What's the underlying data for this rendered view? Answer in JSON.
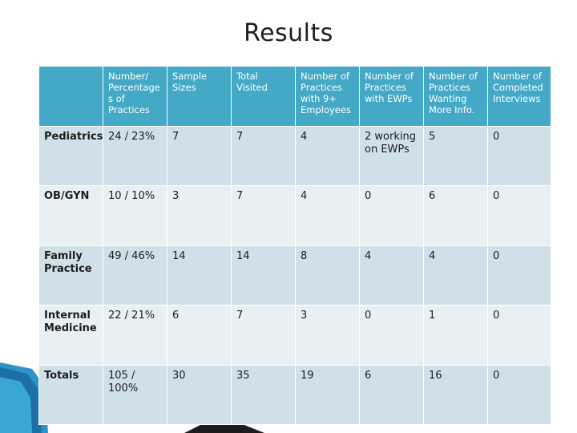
{
  "title": "Results",
  "table": {
    "headers": [
      "",
      "Number/ Percentage s of Practices",
      "Sample Sizes",
      "Total Visited",
      "Number of Practices with 9+ Employees",
      "Number of Practices with EWPs",
      "Number of Practices Wanting More Info.",
      "Number of Completed Interviews"
    ],
    "rows": [
      [
        "Pediatrics",
        "24 / 23%",
        "7",
        "7",
        "4",
        "2 working on EWPs",
        "5",
        "0"
      ],
      [
        "OB/GYN",
        "10 / 10%",
        "3",
        "7",
        "4",
        "0",
        "6",
        "0"
      ],
      [
        "Family Practice",
        "49 / 46%",
        "14",
        "14",
        "8",
        "4",
        "4",
        "0"
      ],
      [
        "Internal Medicine",
        "22 / 21%",
        "6",
        "7",
        "3",
        "0",
        "1",
        "0"
      ],
      [
        "Totals",
        "105 / 100%",
        "30",
        "35",
        "19",
        "6",
        "16",
        "0"
      ]
    ]
  },
  "colors": {
    "header_bg": "#44a9c6",
    "row_dark": "#cfe0e8",
    "row_light": "#e8f0f4",
    "deco_blue": "#2f93c7"
  }
}
